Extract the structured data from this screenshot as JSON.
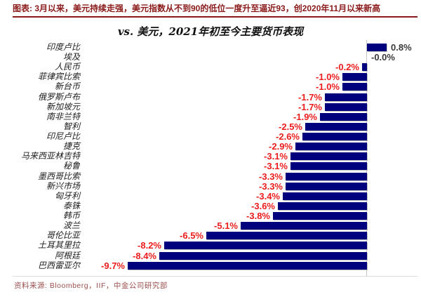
{
  "header": {
    "note": "图表: 3月以来，美元持续走强，美元指数从不到90的低位一度升至逼近93，创2020年11月以来新高"
  },
  "chart_data": {
    "type": "bar",
    "orientation": "horizontal",
    "title": "vs. 美元，2021年初至今主要货币表现",
    "categories": [
      "印度卢比",
      "埃及",
      "人民币",
      "菲律宾比索",
      "新台币",
      "俄罗斯卢布",
      "新加坡元",
      "南非兰特",
      "智利",
      "印尼卢比",
      "捷克",
      "马来西亚林吉特",
      "秘鲁",
      "墨西哥比索",
      "新兴市场",
      "匈牙利",
      "泰铢",
      "韩币",
      "波兰",
      "哥伦比亚",
      "土耳其里拉",
      "阿根廷",
      "巴西雷亚尔"
    ],
    "values": [
      0.8,
      -0.0,
      -0.2,
      -1.0,
      -1.0,
      -1.7,
      -1.7,
      -1.9,
      -2.5,
      -2.6,
      -2.9,
      -3.1,
      -3.1,
      -3.3,
      -3.3,
      -3.4,
      -3.6,
      -3.8,
      -5.1,
      -6.5,
      -8.2,
      -8.4,
      -9.7
    ],
    "value_labels": [
      "0.8%",
      "-0.0%",
      "-0.2%",
      "-1.0%",
      "-1.0%",
      "-1.7%",
      "-1.7%",
      "-1.9%",
      "-2.5%",
      "-2.6%",
      "-2.9%",
      "-3.1%",
      "-3.1%",
      "-3.3%",
      "-3.3%",
      "-3.4%",
      "-3.6%",
      "-3.8%",
      "-5.1%",
      "-6.5%",
      "-8.2%",
      "-8.4%",
      "-9.7%"
    ],
    "xlim": [
      -10.5,
      1.2
    ],
    "grid": "off",
    "legend": "none",
    "bar_color": "#00017d",
    "negative_label_color": "#ee1c1c",
    "positive_label_color": "#3a3a3a",
    "axis_line_color": "#c4c4c4"
  },
  "footer": {
    "source": "资料来源: Bloomberg，IIF，中金公司研究部"
  },
  "colors": {
    "header_red": "#8b1a1a",
    "footer_red": "#9c4f4f",
    "background": "#ffffff"
  }
}
